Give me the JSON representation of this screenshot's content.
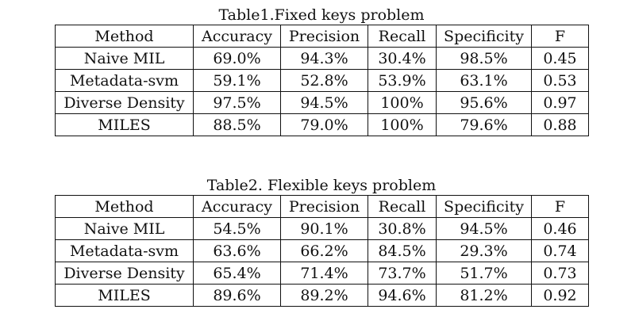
{
  "tables": [
    {
      "caption": "Table1.Fixed keys problem",
      "headers": [
        "Method",
        "Accuracy",
        "Precision",
        "Recall",
        "Specificity",
        "F"
      ],
      "rows": [
        [
          "Naive MIL",
          "69.0%",
          "94.3%",
          "30.4%",
          "98.5%",
          "0.45"
        ],
        [
          "Metadata-svm",
          "59.1%",
          "52.8%",
          "53.9%",
          "63.1%",
          "0.53"
        ],
        [
          "Diverse Density",
          "97.5%",
          "94.5%",
          "100%",
          "95.6%",
          "0.97"
        ],
        [
          "MILES",
          "88.5%",
          "79.0%",
          "100%",
          "79.6%",
          "0.88"
        ]
      ]
    },
    {
      "caption": "Table2. Flexible keys problem",
      "headers": [
        "Method",
        "Accuracy",
        "Precision",
        "Recall",
        "Specificity",
        "F"
      ],
      "rows": [
        [
          "Naive MIL",
          "54.5%",
          "90.1%",
          "30.8%",
          "94.5%",
          "0.46"
        ],
        [
          "Metadata-svm",
          "63.6%",
          "66.2%",
          "84.5%",
          "29.3%",
          "0.74"
        ],
        [
          "Diverse Density",
          "65.4%",
          "71.4%",
          "73.7%",
          "51.7%",
          "0.73"
        ],
        [
          "MILES",
          "89.6%",
          "89.2%",
          "94.6%",
          "81.2%",
          "0.92"
        ]
      ]
    }
  ]
}
